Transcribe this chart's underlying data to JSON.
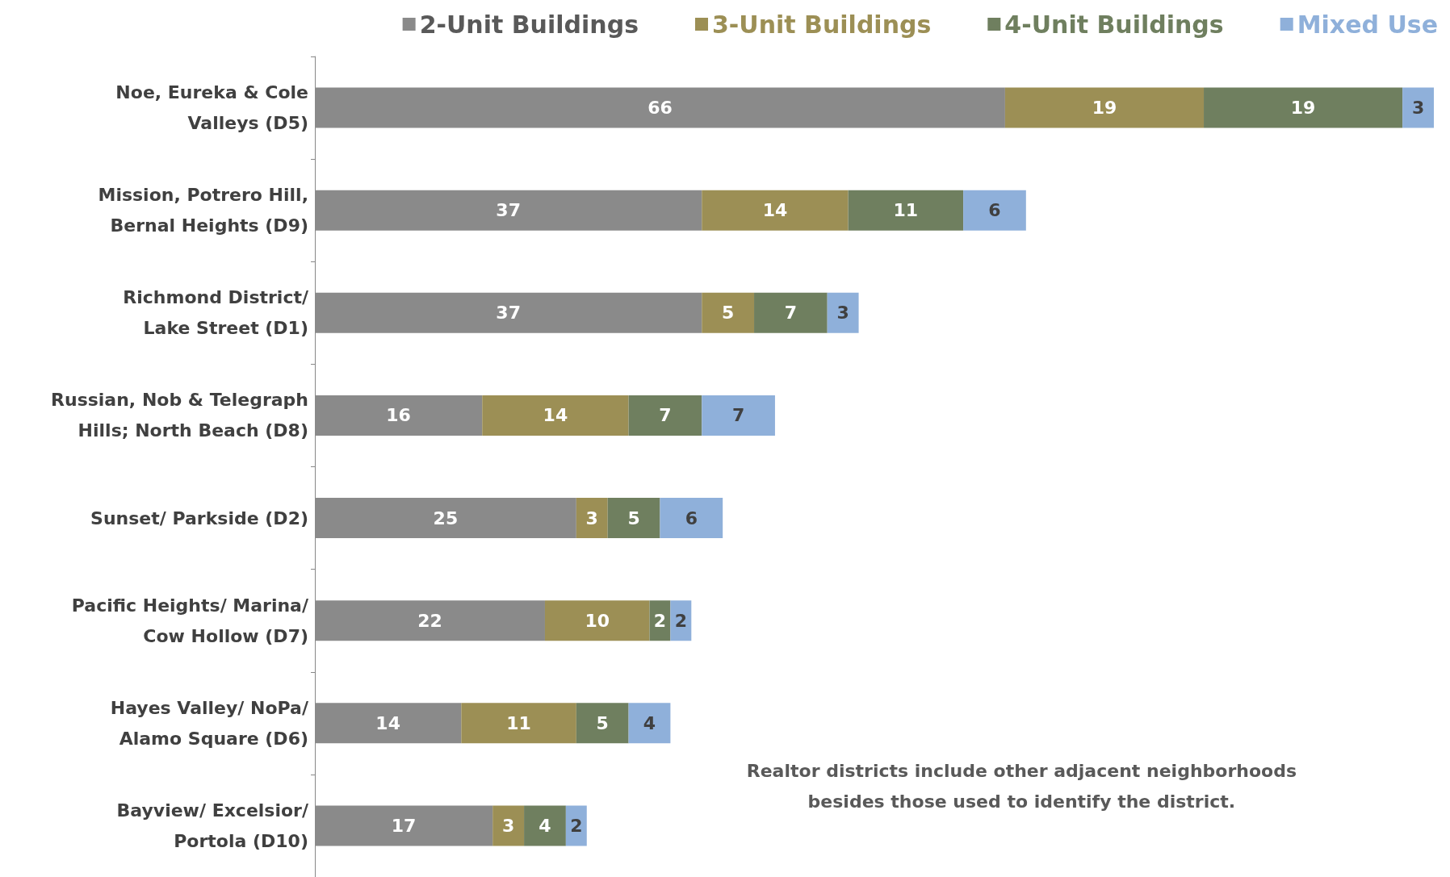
{
  "chart_data": {
    "type": "bar",
    "orientation": "horizontal",
    "stacked": true,
    "data_labels": true,
    "legend": "top right",
    "categories": [
      "Noe, Eureka & Cole\nValleys (D5)",
      "Mission, Potrero Hill,\nBernal Heights (D9)",
      "Richmond District/\nLake Street (D1)",
      "Russian, Nob & Telegraph\nHills; North Beach (D8)",
      "Sunset/ Parkside (D2)",
      "Pacific Heights/ Marina/\nCow Hollow (D7)",
      "Hayes Valley/ NoPa/\nAlamo Square (D6)",
      "Bayview/ Excelsior/\nPortola (D10)"
    ],
    "series": [
      {
        "name": "2-Unit Buildings",
        "color": "#8a8a8a",
        "values": [
          66,
          37,
          37,
          16,
          25,
          22,
          14,
          17
        ]
      },
      {
        "name": "3-Unit Buildings",
        "color": "#9c8f55",
        "values": [
          19,
          14,
          5,
          14,
          3,
          10,
          11,
          3
        ]
      },
      {
        "name": "4-Unit Buildings",
        "color": "#6f7f5f",
        "values": [
          19,
          11,
          7,
          7,
          5,
          2,
          5,
          4
        ]
      },
      {
        "name": "Mixed Use",
        "color": "#8fb0da",
        "values": [
          3,
          6,
          3,
          7,
          6,
          2,
          4,
          2
        ]
      }
    ],
    "annotations": [
      "Realtor districts include other adjacent neighborhoods\nbesides those used to identify the district."
    ]
  }
}
